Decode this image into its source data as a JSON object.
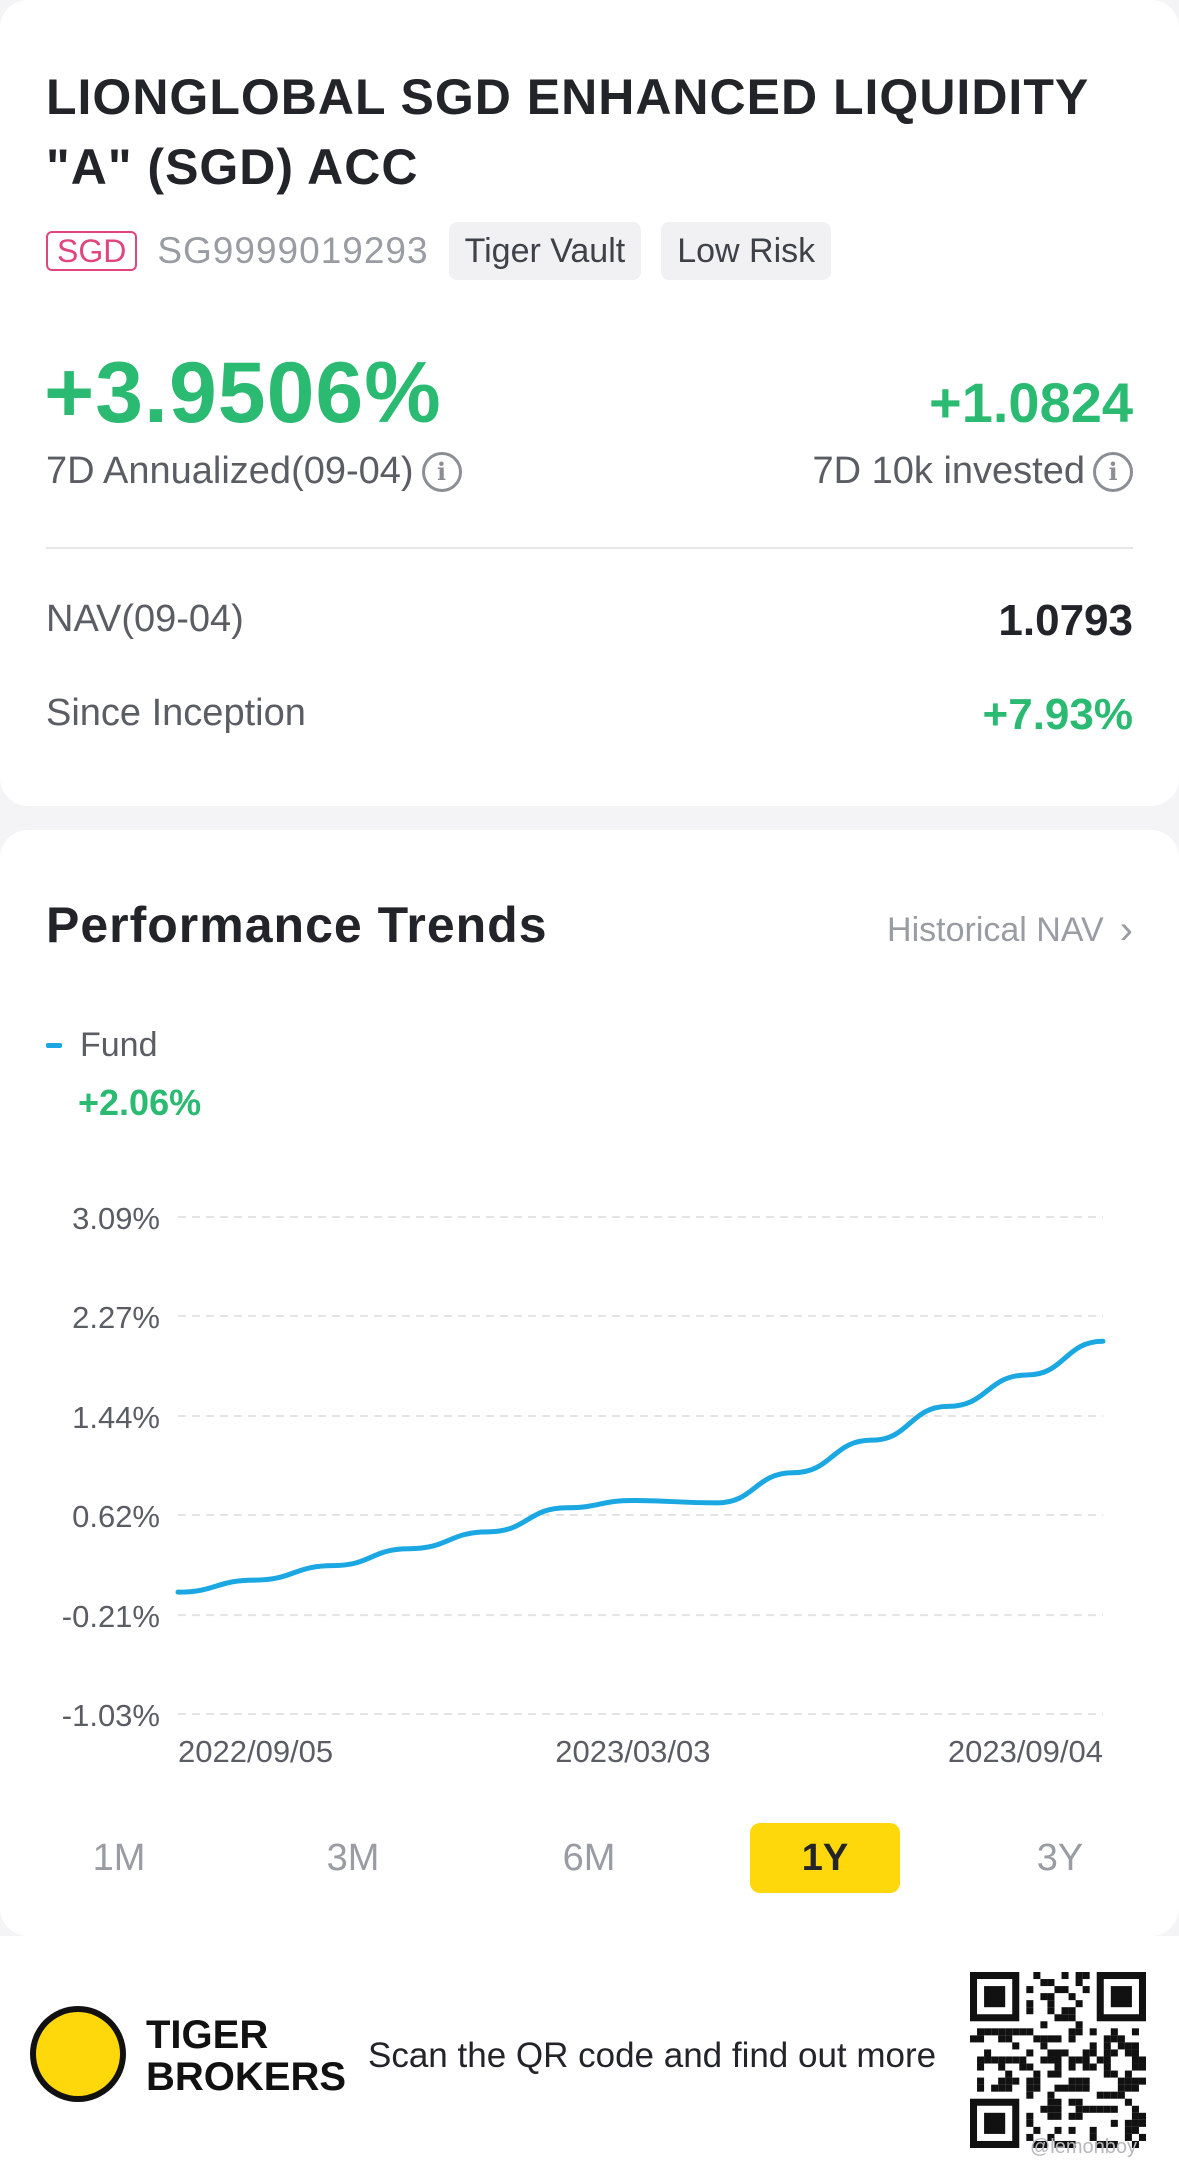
{
  "fund": {
    "title": "LIONGLOBAL SGD ENHANCED LIQUIDITY \"A\" (SGD) ACC",
    "currency": "SGD",
    "isin": "SG9999019293",
    "tags": [
      "Tiger Vault",
      "Low Risk"
    ],
    "annualized_value": "+3.9506%",
    "annualized_label": "7D Annualized(09-04)",
    "invested_value": "+1.0824",
    "invested_label": "7D 10k invested",
    "nav_label": "NAV(09-04)",
    "nav_value": "1.0793",
    "inception_label": "Since Inception",
    "inception_value": "+7.93%"
  },
  "performance": {
    "title": "Performance Trends",
    "historical_link": "Historical NAV",
    "legend_label": "Fund",
    "legend_value": "+2.06%",
    "tabs": [
      "1M",
      "3M",
      "6M",
      "1Y",
      "3Y"
    ],
    "active_tab": "1Y"
  },
  "chart_data": {
    "type": "line",
    "y_ticks": [
      "3.09%",
      "2.27%",
      "1.44%",
      "0.62%",
      "-0.21%",
      "-1.03%"
    ],
    "x_ticks": [
      "2022/09/05",
      "2023/03/03",
      "2023/09/04"
    ],
    "ylim": [
      -1.03,
      3.09
    ],
    "grid": true,
    "series": [
      {
        "name": "Fund",
        "color": "#1aa7e2",
        "x": [
          "2022/09/05",
          "2022/10/05",
          "2022/11/05",
          "2022/12/05",
          "2023/01/05",
          "2023/02/05",
          "2023/03/03",
          "2023/04/05",
          "2023/05/05",
          "2023/06/05",
          "2023/07/05",
          "2023/08/05",
          "2023/09/04"
        ],
        "values": [
          -0.02,
          0.08,
          0.2,
          0.34,
          0.48,
          0.68,
          0.74,
          0.72,
          0.97,
          1.24,
          1.52,
          1.78,
          2.06
        ]
      }
    ]
  },
  "footer": {
    "brand_line1": "TIGER",
    "brand_line2": "BROKERS",
    "scan_text": "Scan the QR code and find out more",
    "watermark": "@lemonboy"
  },
  "colors": {
    "accent_green": "#2bba71",
    "series_blue": "#1aa7e2",
    "tab_active": "#ffd80b",
    "currency_badge": "#e0457b"
  }
}
